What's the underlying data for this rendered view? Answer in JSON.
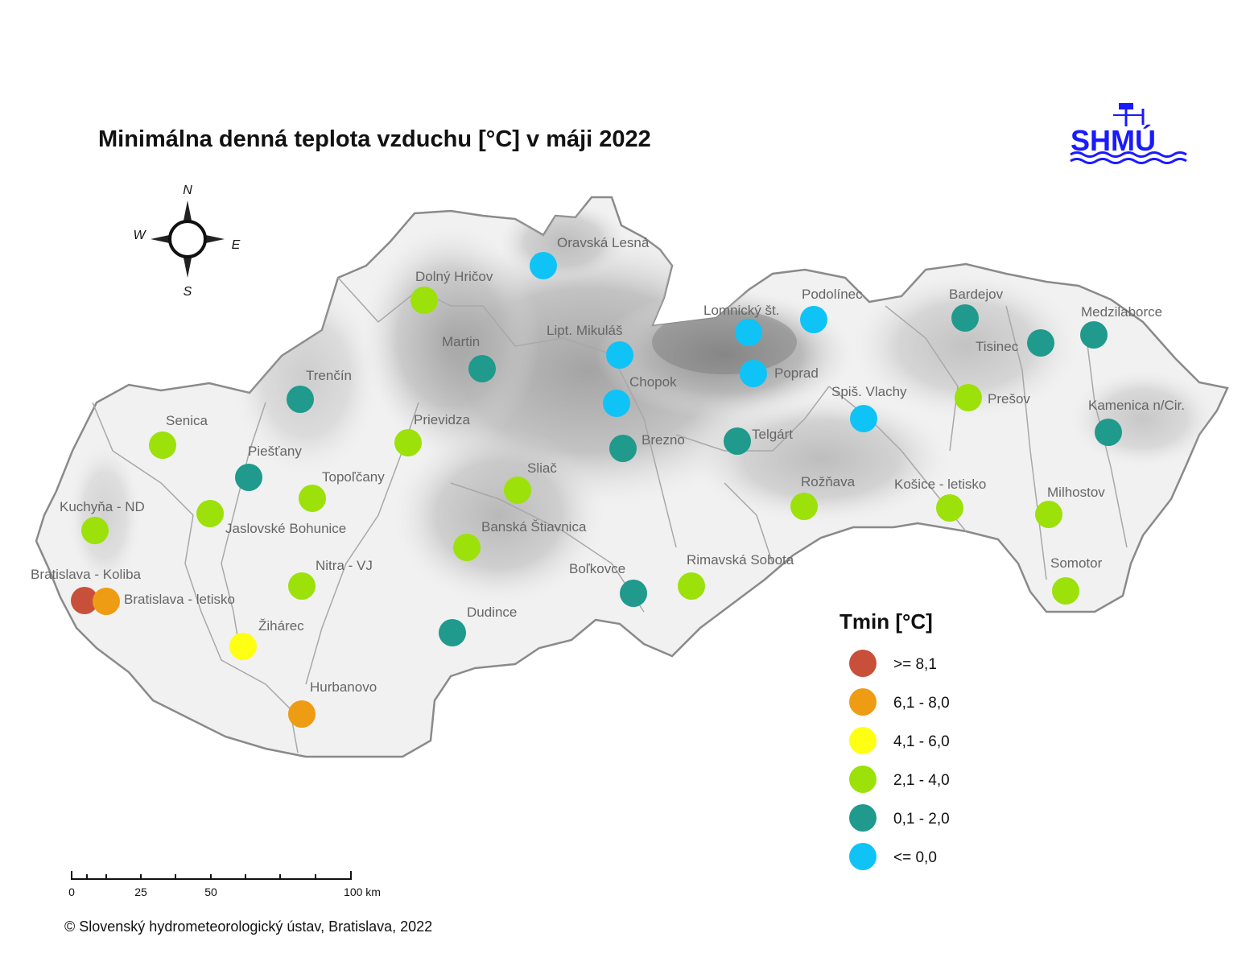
{
  "title": "Minimálna denná teplota vzduchu [°C] v máji 2022",
  "logo": {
    "text": "SHMÚ"
  },
  "compass": {
    "n": "N",
    "e": "E",
    "s": "S",
    "w": "W"
  },
  "legend": {
    "title": "Tmin [°C]",
    "classes": [
      {
        "label": ">= 8,1",
        "color": "#c8503a"
      },
      {
        "label": "6,1 - 8,0",
        "color": "#ee9c14"
      },
      {
        "label": "4,1 - 6,0",
        "color": "#ffff14"
      },
      {
        "label": "2,1 - 4,0",
        "color": "#9ce10a"
      },
      {
        "label": "0,1 - 2,0",
        "color": "#1f9a8c"
      },
      {
        "label": "<= 0,0",
        "color": "#0fc3f6"
      }
    ]
  },
  "scale_bar": {
    "labels": [
      "0",
      "25",
      "50",
      "100 km"
    ]
  },
  "copyright": "© Slovenský hydrometeorologický ústav, Bratislava, 2022",
  "stations": [
    {
      "name": "Oravská Lesná",
      "class": 5
    },
    {
      "name": "Dolný Hričov",
      "class": 3
    },
    {
      "name": "Martin",
      "class": 4
    },
    {
      "name": "Lipt. Mikuláš",
      "class": 5
    },
    {
      "name": "Chopok",
      "class": 5
    },
    {
      "name": "Lomnický št.",
      "class": 5
    },
    {
      "name": "Podolínec",
      "class": 5
    },
    {
      "name": "Poprad",
      "class": 5
    },
    {
      "name": "Bardejov",
      "class": 4
    },
    {
      "name": "Tisinec",
      "class": 4
    },
    {
      "name": "Medzilaborce",
      "class": 4
    },
    {
      "name": "Prešov",
      "class": 3
    },
    {
      "name": "Kamenica n/Cir.",
      "class": 4
    },
    {
      "name": "Spiš. Vlachy",
      "class": 5
    },
    {
      "name": "Trenčín",
      "class": 4
    },
    {
      "name": "Senica",
      "class": 3
    },
    {
      "name": "Prievidza",
      "class": 3
    },
    {
      "name": "Brezno",
      "class": 4
    },
    {
      "name": "Telgárt",
      "class": 4
    },
    {
      "name": "Piešťany",
      "class": 4
    },
    {
      "name": "Topoľčany",
      "class": 3
    },
    {
      "name": "Sliač",
      "class": 3
    },
    {
      "name": "Rožňava",
      "class": 3
    },
    {
      "name": "Košice - letisko",
      "class": 3
    },
    {
      "name": "Milhostov",
      "class": 3
    },
    {
      "name": "Kuchyňa - ND",
      "class": 3
    },
    {
      "name": "Jaslovské Bohunice",
      "class": 3
    },
    {
      "name": "Banská Štiavnica",
      "class": 3
    },
    {
      "name": "Nitra - VJ",
      "class": 3
    },
    {
      "name": "Bratislava - Koliba",
      "class": 0
    },
    {
      "name": "Bratislava - letisko",
      "class": 1
    },
    {
      "name": "Boľkovce",
      "class": 4
    },
    {
      "name": "Rimavská Sobota",
      "class": 3
    },
    {
      "name": "Somotor",
      "class": 3
    },
    {
      "name": "Žihárec",
      "class": 2
    },
    {
      "name": "Dudince",
      "class": 4
    },
    {
      "name": "Hurbanovo",
      "class": 1
    }
  ]
}
